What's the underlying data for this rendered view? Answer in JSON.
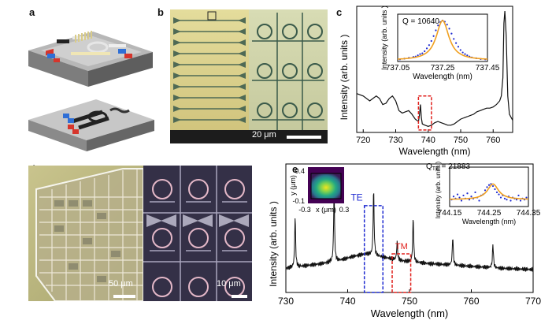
{
  "panels": {
    "a": {
      "label": "a"
    },
    "b": {
      "label": "b",
      "scale_bar": "20 μm"
    },
    "c": {
      "label": "c"
    },
    "d": {
      "label": "d",
      "scale_bar_left": "50 μm",
      "scale_bar_right": "10 μm"
    },
    "e": {
      "label": "e"
    }
  },
  "colors": {
    "te": "#1f2bd1",
    "tm": "#e0201c",
    "fit": "#f0a020",
    "spectrum": "#111111"
  },
  "chart_data": [
    {
      "id": "c",
      "type": "line",
      "xlabel": "Wavelength (nm)",
      "ylabel": "Intensity (arb. units )",
      "xlim": [
        718,
        766
      ],
      "xticks": [
        "720",
        "730",
        "740",
        "750",
        "760"
      ],
      "highlight_box": [
        737,
        741
      ],
      "x": [
        718,
        720,
        722,
        723,
        724,
        725,
        726,
        727,
        728,
        729,
        730,
        731,
        732,
        733,
        734,
        735,
        736,
        737,
        737.3,
        737.6,
        737.9,
        738.2,
        739,
        740,
        741,
        742,
        743,
        744,
        745,
        746,
        747,
        748,
        749,
        750,
        751,
        752,
        753,
        754,
        755,
        756,
        757,
        758,
        759,
        760,
        761,
        762,
        762.5,
        763,
        763.3,
        763.6,
        764,
        764.5,
        765,
        766
      ],
      "y": [
        0.32,
        0.3,
        0.26,
        0.28,
        0.3,
        0.28,
        0.23,
        0.24,
        0.28,
        0.3,
        0.26,
        0.18,
        0.16,
        0.17,
        0.18,
        0.15,
        0.11,
        0.09,
        0.14,
        0.23,
        0.12,
        0.07,
        0.06,
        0.05,
        0.06,
        0.08,
        0.09,
        0.08,
        0.07,
        0.06,
        0.06,
        0.07,
        0.09,
        0.11,
        0.12,
        0.13,
        0.14,
        0.15,
        0.17,
        0.18,
        0.19,
        0.2,
        0.2,
        0.21,
        0.23,
        0.26,
        0.3,
        0.45,
        0.9,
        1.0,
        0.8,
        0.3,
        0.15,
        0.1
      ],
      "inset": {
        "annotation": "Q = 10640",
        "xlabel": "Wavelength (nm)",
        "ylabel": "Intensity (arb. units )",
        "xlim": [
          737.05,
          737.45
        ],
        "xticks": [
          "737.05",
          "737.25",
          "737.45"
        ],
        "fit_center": 737.25,
        "fit_fwhm": 0.069,
        "points_x": [
          737.06,
          737.08,
          737.1,
          737.12,
          737.13,
          737.14,
          737.15,
          737.16,
          737.17,
          737.18,
          737.19,
          737.2,
          737.21,
          737.22,
          737.23,
          737.24,
          737.25,
          737.26,
          737.27,
          737.28,
          737.29,
          737.3,
          737.31,
          737.32,
          737.33,
          737.34,
          737.35,
          737.36,
          737.37,
          737.38,
          737.4,
          737.42,
          737.44
        ],
        "points_y": [
          0.05,
          0.07,
          0.09,
          0.11,
          0.12,
          0.15,
          0.18,
          0.2,
          0.25,
          0.32,
          0.4,
          0.5,
          0.62,
          0.76,
          0.88,
          0.96,
          1.0,
          0.97,
          0.9,
          0.8,
          0.68,
          0.55,
          0.45,
          0.36,
          0.28,
          0.22,
          0.18,
          0.15,
          0.12,
          0.1,
          0.08,
          0.06,
          0.05
        ]
      }
    },
    {
      "id": "e",
      "type": "line",
      "xlabel": "Wavelength (nm)",
      "ylabel": "Intensity (arb. units )",
      "xlim": [
        730,
        770
      ],
      "xticks": [
        "730",
        "740",
        "750",
        "760",
        "770"
      ],
      "te_label": "TE",
      "tm_label": "TM",
      "te_box": [
        742.7,
        745.7
      ],
      "tm_box": [
        747.2,
        750.2
      ],
      "baseline": [
        [
          730,
          0.2
        ],
        [
          733,
          0.22
        ],
        [
          736,
          0.24
        ],
        [
          739,
          0.27
        ],
        [
          741,
          0.3
        ],
        [
          743,
          0.32
        ],
        [
          745,
          0.3
        ],
        [
          747,
          0.28
        ],
        [
          749,
          0.26
        ],
        [
          751,
          0.25
        ],
        [
          753,
          0.24
        ],
        [
          756,
          0.23
        ],
        [
          759,
          0.22
        ],
        [
          762,
          0.21
        ],
        [
          765,
          0.2
        ],
        [
          770,
          0.19
        ]
      ],
      "peaks": [
        {
          "x": 731.5,
          "h": 0.42
        },
        {
          "x": 737.8,
          "h": 0.58
        },
        {
          "x": 744.2,
          "h": 0.55
        },
        {
          "x": 748.0,
          "h": 0.15
        },
        {
          "x": 750.6,
          "h": 0.37
        },
        {
          "x": 757.0,
          "h": 0.24
        },
        {
          "x": 763.5,
          "h": 0.2
        }
      ],
      "inset_mode": {
        "xlabel": "x (μm)",
        "ylabel": "y (μm)",
        "x_ticks": [
          "-0.3",
          "0.3"
        ],
        "y_ticks": [
          "0.4",
          "-0.1"
        ]
      },
      "inset_q": {
        "annotation_q": "Q",
        "annotation_sub": "TE",
        "annotation_value": " = 21883",
        "xlabel": "Wavelength (nm)",
        "ylabel": "Intensity (arb. units )",
        "xlim": [
          744.15,
          744.35
        ],
        "xticks": [
          "744.15",
          "744.25",
          "744.35"
        ],
        "fit_center": 744.26,
        "fit_fwhm": 0.034,
        "points_x": [
          744.155,
          744.16,
          744.165,
          744.17,
          744.175,
          744.18,
          744.185,
          744.19,
          744.195,
          744.2,
          744.205,
          744.21,
          744.215,
          744.22,
          744.225,
          744.23,
          744.235,
          744.24,
          744.245,
          744.25,
          744.255,
          744.26,
          744.265,
          744.27,
          744.275,
          744.28,
          744.285,
          744.29,
          744.295,
          744.3,
          744.305,
          744.31,
          744.315,
          744.32,
          744.325,
          744.33,
          744.335,
          744.34,
          744.345
        ],
        "points_y": [
          0.25,
          0.4,
          0.3,
          0.5,
          0.35,
          0.2,
          0.45,
          0.3,
          0.55,
          0.25,
          0.4,
          0.3,
          0.6,
          0.35,
          0.2,
          0.45,
          0.5,
          0.7,
          0.85,
          0.95,
          1.0,
          0.9,
          0.75,
          0.6,
          0.5,
          0.35,
          0.45,
          0.3,
          0.25,
          0.4,
          0.2,
          0.35,
          0.3,
          0.25,
          0.45,
          0.2,
          0.3,
          0.25,
          0.35
        ]
      }
    }
  ]
}
